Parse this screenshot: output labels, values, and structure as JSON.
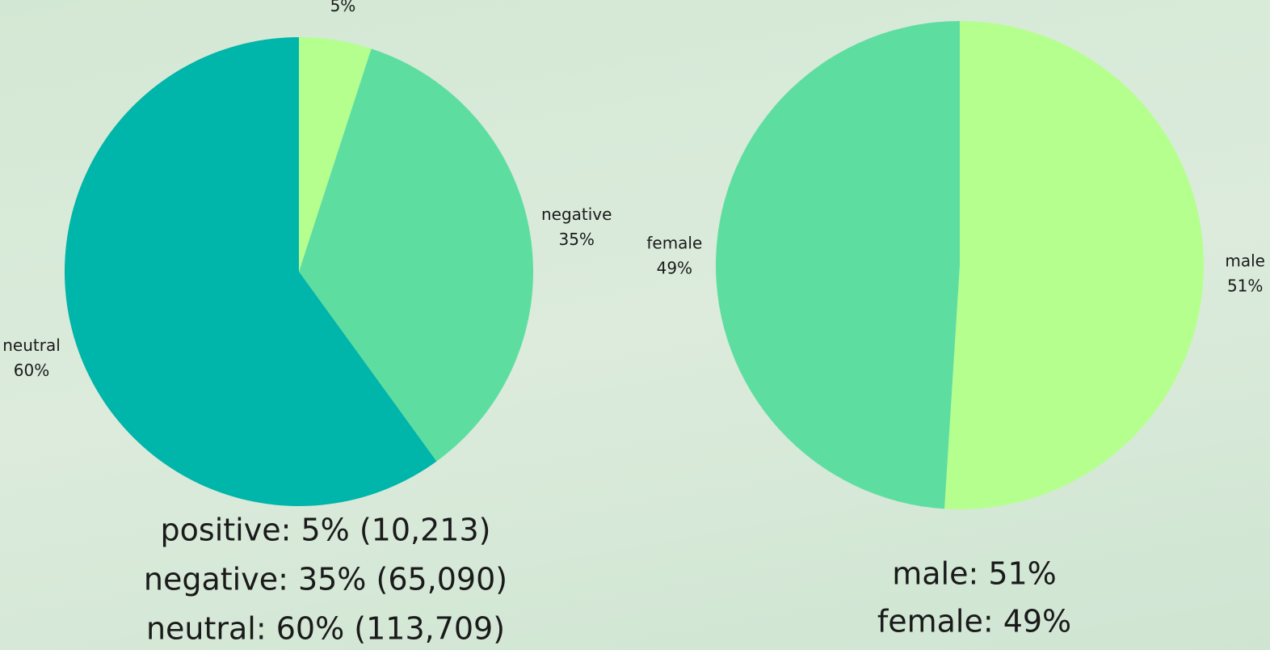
{
  "chart_data": [
    {
      "type": "pie",
      "categories": [
        "positive",
        "negative",
        "neutral"
      ],
      "values": [
        5,
        35,
        60
      ],
      "value_labels": [
        "5%",
        "35%",
        "60%"
      ],
      "colors": [
        "#b5ff8f",
        "#5ddea0",
        "#00b5a9"
      ],
      "captions": [
        "positive: 5% (10,213)",
        "negative: 35% (65,090)",
        "neutral: 60% (113,709)"
      ]
    },
    {
      "type": "pie",
      "categories": [
        "male",
        "female"
      ],
      "values": [
        51,
        49
      ],
      "value_labels": [
        "51%",
        "49%"
      ],
      "colors": [
        "#b5ff8f",
        "#5ddea0"
      ],
      "captions": [
        "male: 51%",
        "female: 49%"
      ]
    }
  ]
}
